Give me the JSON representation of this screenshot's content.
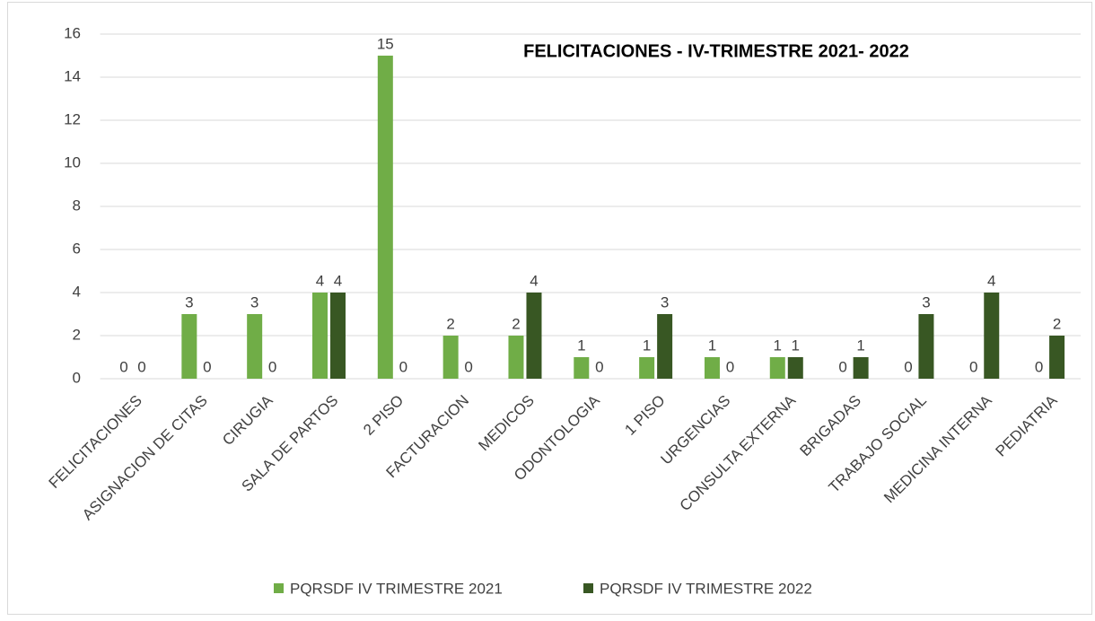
{
  "chart_data": {
    "type": "bar",
    "title": "FELICITACIONES - IV-TRIMESTRE 2021- 2022",
    "categories": [
      "FELICITACIONES",
      "ASIGNACION DE CITAS",
      "CIRUGIA",
      "SALA DE PARTOS",
      "2 PISO",
      "FACTURACION",
      "MEDICOS",
      "ODONTOLOGIA",
      "1 PISO",
      "URGENCIAS",
      "CONSULTA EXTERNA",
      "BRIGADAS",
      "TRABAJO SOCIAL",
      "MEDICINA INTERNA",
      "PEDIATRIA"
    ],
    "series": [
      {
        "name": "PQRSDF IV TRIMESTRE 2021",
        "color": "#70ad47",
        "values": [
          0,
          3,
          3,
          4,
          15,
          2,
          2,
          1,
          1,
          1,
          1,
          0,
          0,
          0,
          0
        ]
      },
      {
        "name": "PQRSDF IV TRIMESTRE 2022",
        "color": "#385723",
        "values": [
          0,
          0,
          0,
          4,
          0,
          0,
          4,
          0,
          3,
          0,
          1,
          1,
          3,
          4,
          2
        ]
      }
    ],
    "ylim": [
      0,
      16
    ],
    "yticks": [
      0,
      2,
      4,
      6,
      8,
      10,
      12,
      14,
      16
    ],
    "grid": true,
    "legend": "bottom"
  }
}
